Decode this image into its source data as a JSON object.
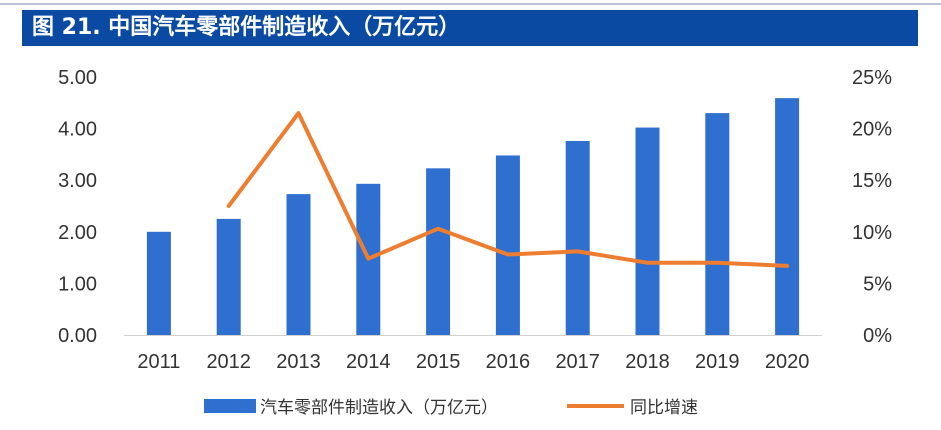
{
  "chart_data": {
    "type": "bar",
    "title": "图 21. 中国汽车零部件制造收入（万亿元）",
    "categories": [
      "2011",
      "2012",
      "2013",
      "2014",
      "2015",
      "2016",
      "2017",
      "2018",
      "2019",
      "2020"
    ],
    "series": [
      {
        "name": "汽车零部件制造收入（万亿元）",
        "type": "bar",
        "axis": "left",
        "color": "#2e6fd0",
        "values": [
          2.0,
          2.25,
          2.73,
          2.93,
          3.23,
          3.48,
          3.76,
          4.02,
          4.3,
          4.59
        ]
      },
      {
        "name": "同比增速",
        "type": "line",
        "axis": "right",
        "color": "#ed7d31",
        "values": [
          null,
          12.5,
          21.5,
          7.4,
          10.3,
          7.8,
          8.1,
          7.0,
          7.0,
          6.7
        ]
      }
    ],
    "y_left": {
      "min": 0,
      "max": 5,
      "ticks": [
        "0.00",
        "1.00",
        "2.00",
        "3.00",
        "4.00",
        "5.00"
      ]
    },
    "y_right": {
      "min": 0,
      "max": 25,
      "ticks": [
        "0%",
        "5%",
        "10%",
        "15%",
        "20%",
        "25%"
      ]
    },
    "grid": false,
    "legend_position": "bottom"
  }
}
